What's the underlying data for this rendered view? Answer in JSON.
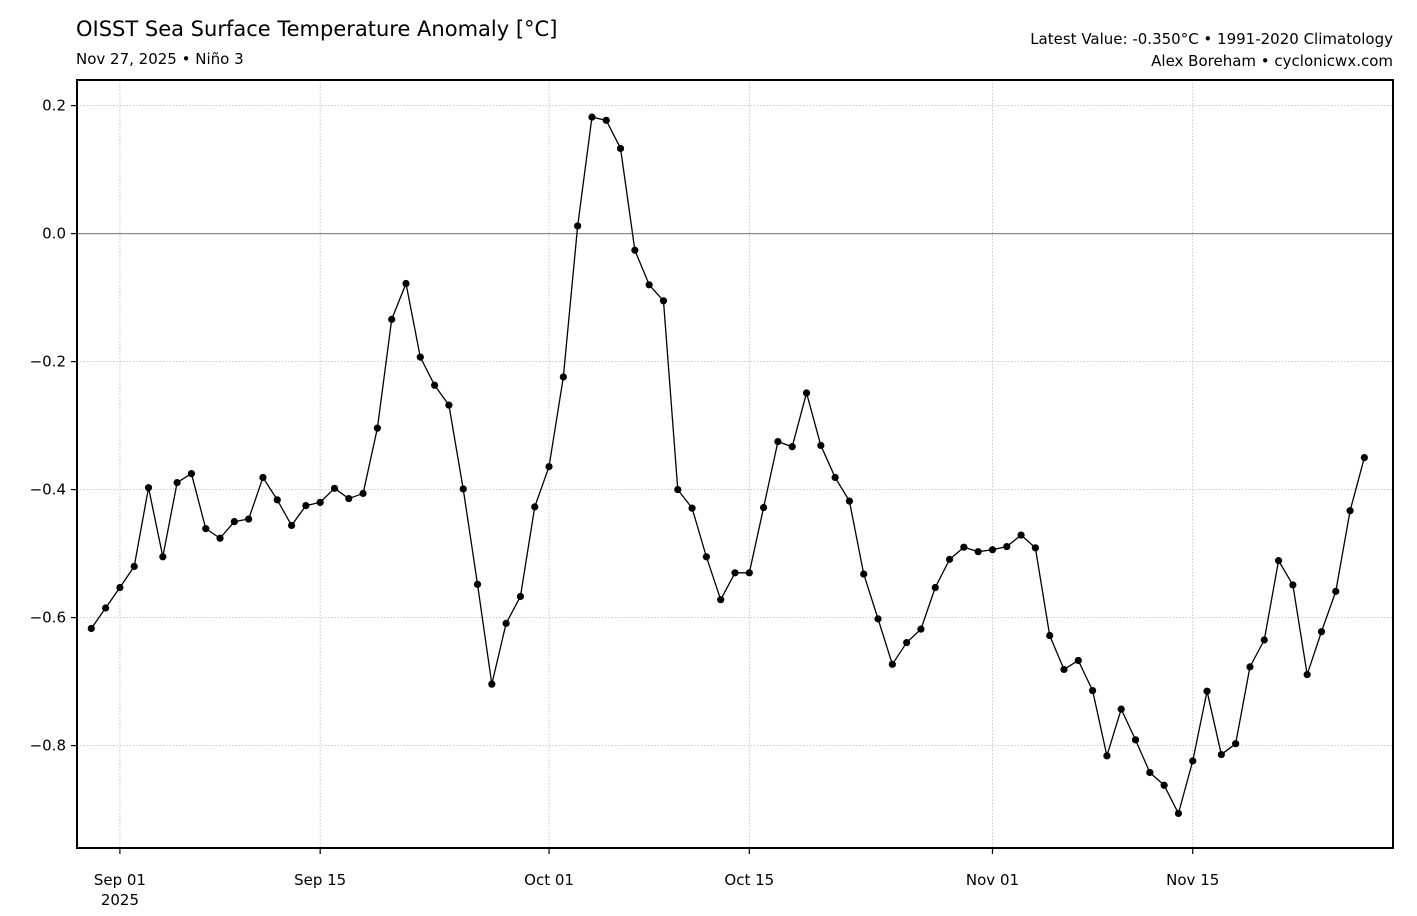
{
  "header": {
    "title": "OISST Sea Surface Temperature Anomaly [°C]",
    "subtitle": "Nov 27, 2025 • Niño 3",
    "info_line1": "Latest Value: -0.350°C • 1991-2020 Climatology",
    "info_line2": "Alex Boreham • cyclonicwx.com"
  },
  "chart_data": {
    "type": "line",
    "title": "OISST Sea Surface Temperature Anomaly [°C]",
    "subtitle": "Nov 27, 2025 • Niño 3",
    "xlabel": "",
    "ylabel": "",
    "x_start": "2025-08-30",
    "x_end": "2025-11-26",
    "xlim": [
      "2025-08-29",
      "2025-11-29"
    ],
    "ylim": [
      -0.96,
      0.24
    ],
    "yticks": [
      0.2,
      0.0,
      -0.2,
      -0.4,
      -0.6,
      -0.8
    ],
    "ytick_labels": [
      "0.2",
      "0.0",
      "−0.2",
      "−0.4",
      "−0.6",
      "−0.8"
    ],
    "xticks": [
      {
        "date": "2025-09-01",
        "label": "Sep 01",
        "sublabel": "2025"
      },
      {
        "date": "2025-09-15",
        "label": "Sep 15",
        "sublabel": ""
      },
      {
        "date": "2025-10-01",
        "label": "Oct 01",
        "sublabel": ""
      },
      {
        "date": "2025-10-15",
        "label": "Oct 15",
        "sublabel": ""
      },
      {
        "date": "2025-11-01",
        "label": "Nov 01",
        "sublabel": ""
      },
      {
        "date": "2025-11-15",
        "label": "Nov 15",
        "sublabel": ""
      }
    ],
    "grid": true,
    "zero_line": true,
    "series": [
      {
        "line_color": "#000000",
        "marker": "circle",
        "values": [
          -0.617,
          -0.585,
          -0.553,
          -0.52,
          -0.397,
          -0.505,
          -0.389,
          -0.375,
          -0.461,
          -0.476,
          -0.45,
          -0.446,
          -0.381,
          -0.416,
          -0.456,
          -0.425,
          -0.42,
          -0.398,
          -0.414,
          -0.406,
          -0.304,
          -0.134,
          -0.078,
          -0.193,
          -0.237,
          -0.268,
          -0.399,
          -0.548,
          -0.704,
          -0.609,
          -0.567,
          -0.427,
          -0.364,
          -0.224,
          0.012,
          0.182,
          0.177,
          0.133,
          -0.026,
          -0.08,
          -0.105,
          -0.4,
          -0.429,
          -0.505,
          -0.572,
          -0.53,
          -0.53,
          -0.428,
          -0.325,
          -0.333,
          -0.249,
          -0.331,
          -0.381,
          -0.418,
          -0.532,
          -0.602,
          -0.673,
          -0.639,
          -0.618,
          -0.553,
          -0.509,
          -0.49,
          -0.497,
          -0.494,
          -0.489,
          -0.471,
          -0.491,
          -0.628,
          -0.681,
          -0.667,
          -0.714,
          -0.816,
          -0.743,
          -0.791,
          -0.842,
          -0.862,
          -0.906,
          -0.824,
          -0.715,
          -0.814,
          -0.797,
          -0.677,
          -0.635,
          -0.511,
          -0.549,
          -0.689,
          -0.622,
          -0.559,
          -0.433,
          -0.35
        ]
      }
    ]
  }
}
